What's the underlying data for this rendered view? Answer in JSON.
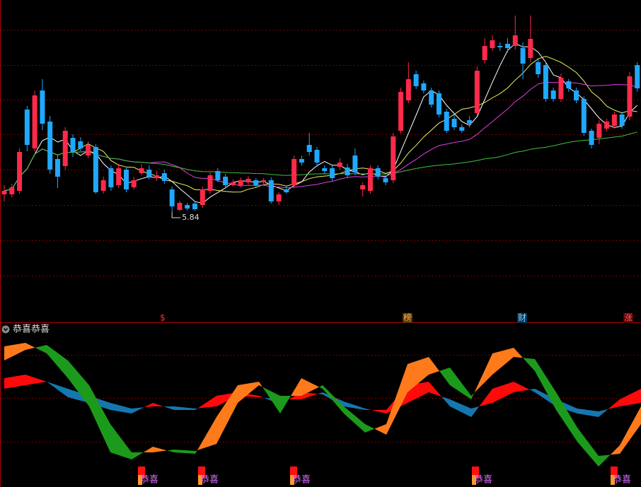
{
  "main": {
    "ylim": [
      4.28,
      8.84
    ],
    "up_color": "#ff2a4a",
    "down_color": "#1fa8ff",
    "low_label": 5.84,
    "markers": [
      "$",
      "榜",
      "财",
      "涨"
    ],
    "candles": [
      [
        6.09,
        6.22,
        5.99,
        6.14
      ],
      [
        6.09,
        6.24,
        6.05,
        6.19
      ],
      [
        6.14,
        6.74,
        6.1,
        6.69
      ],
      [
        7.29,
        7.34,
        6.7,
        6.79
      ],
      [
        6.74,
        7.56,
        6.7,
        7.49
      ],
      [
        7.56,
        7.72,
        7.0,
        7.09
      ],
      [
        7.12,
        7.2,
        6.38,
        6.44
      ],
      [
        6.59,
        6.66,
        6.18,
        6.34
      ],
      [
        6.49,
        7.04,
        6.44,
        6.99
      ],
      [
        6.89,
        6.94,
        6.62,
        6.69
      ],
      [
        6.84,
        6.9,
        6.7,
        6.74
      ],
      [
        6.64,
        6.84,
        6.6,
        6.79
      ],
      [
        6.76,
        6.8,
        6.1,
        6.12
      ],
      [
        6.14,
        6.34,
        6.1,
        6.29
      ],
      [
        6.46,
        6.5,
        6.14,
        6.19
      ],
      [
        6.22,
        6.52,
        6.18,
        6.46
      ],
      [
        6.44,
        6.48,
        6.12,
        6.16
      ],
      [
        6.19,
        6.34,
        6.16,
        6.29
      ],
      [
        6.39,
        6.52,
        6.36,
        6.46
      ],
      [
        6.44,
        6.5,
        6.3,
        6.34
      ],
      [
        6.32,
        6.42,
        6.28,
        6.36
      ],
      [
        6.39,
        6.44,
        6.24,
        6.28
      ],
      [
        6.16,
        6.2,
        5.84,
        5.92
      ],
      [
        5.87,
        6.0,
        5.85,
        5.97
      ],
      [
        5.94,
        5.97,
        5.86,
        5.89
      ],
      [
        5.96,
        5.99,
        5.86,
        5.88
      ],
      [
        5.94,
        6.2,
        5.9,
        6.16
      ],
      [
        6.14,
        6.4,
        6.1,
        6.36
      ],
      [
        6.42,
        6.46,
        6.26,
        6.29
      ],
      [
        6.34,
        6.38,
        6.18,
        6.22
      ],
      [
        6.22,
        6.3,
        6.2,
        6.26
      ],
      [
        6.22,
        6.33,
        6.19,
        6.29
      ],
      [
        6.26,
        6.35,
        6.23,
        6.31
      ],
      [
        6.29,
        6.32,
        6.19,
        6.22
      ],
      [
        6.26,
        6.32,
        6.24,
        6.29
      ],
      [
        6.29,
        6.33,
        5.96,
        5.99
      ],
      [
        5.99,
        6.12,
        5.94,
        6.09
      ],
      [
        6.16,
        6.2,
        6.1,
        6.12
      ],
      [
        6.22,
        6.64,
        6.18,
        6.59
      ],
      [
        6.59,
        6.64,
        6.5,
        6.54
      ],
      [
        6.79,
        6.96,
        6.64,
        6.69
      ],
      [
        6.72,
        6.76,
        6.48,
        6.54
      ],
      [
        6.46,
        6.5,
        6.38,
        6.42
      ],
      [
        6.46,
        6.5,
        6.28,
        6.32
      ],
      [
        6.48,
        6.6,
        6.44,
        6.54
      ],
      [
        6.47,
        6.52,
        6.32,
        6.36
      ],
      [
        6.64,
        6.74,
        6.36,
        6.4
      ],
      [
        6.16,
        6.26,
        6.06,
        6.22
      ],
      [
        6.14,
        6.5,
        6.1,
        6.46
      ],
      [
        6.46,
        6.5,
        6.3,
        6.34
      ],
      [
        6.32,
        6.36,
        6.22,
        6.26
      ],
      [
        6.29,
        6.96,
        6.25,
        6.91
      ],
      [
        6.99,
        7.6,
        6.95,
        7.54
      ],
      [
        7.42,
        7.96,
        7.38,
        7.72
      ],
      [
        7.79,
        7.84,
        7.58,
        7.62
      ],
      [
        7.66,
        7.7,
        7.52,
        7.56
      ],
      [
        7.56,
        7.6,
        7.32,
        7.36
      ],
      [
        7.52,
        7.56,
        7.18,
        7.22
      ],
      [
        7.26,
        7.3,
        6.96,
        6.99
      ],
      [
        7.16,
        7.22,
        7.0,
        7.04
      ],
      [
        7.04,
        7.08,
        6.96,
        6.99
      ],
      [
        7.14,
        7.2,
        7.04,
        7.09
      ],
      [
        7.24,
        7.9,
        7.2,
        7.84
      ],
      [
        7.99,
        8.3,
        7.94,
        8.19
      ],
      [
        8.16,
        8.34,
        8.12,
        8.27
      ],
      [
        8.19,
        8.24,
        8.12,
        8.17
      ],
      [
        8.22,
        8.3,
        8.1,
        8.16
      ],
      [
        8.19,
        8.62,
        8.14,
        8.34
      ],
      [
        8.16,
        8.24,
        7.72,
        7.94
      ],
      [
        8.02,
        8.62,
        7.96,
        8.29
      ],
      [
        7.96,
        8.0,
        7.74,
        7.79
      ],
      [
        7.92,
        7.96,
        7.4,
        7.44
      ],
      [
        7.56,
        7.6,
        7.4,
        7.44
      ],
      [
        7.44,
        7.8,
        7.4,
        7.74
      ],
      [
        7.69,
        7.72,
        7.54,
        7.59
      ],
      [
        7.56,
        7.6,
        7.38,
        7.42
      ],
      [
        7.44,
        7.48,
        6.92,
        6.96
      ],
      [
        6.99,
        7.02,
        6.74,
        6.79
      ],
      [
        6.89,
        7.14,
        6.8,
        7.09
      ],
      [
        7.02,
        7.16,
        6.98,
        7.12
      ],
      [
        7.06,
        7.26,
        7.02,
        7.22
      ],
      [
        7.22,
        7.26,
        7.02,
        7.06
      ],
      [
        7.19,
        7.82,
        7.14,
        7.76
      ],
      [
        7.92,
        7.96,
        7.54,
        7.59
      ]
    ]
  },
  "indicator": {
    "title": "恭喜恭喜",
    "ylim": [
      0,
      100
    ],
    "signals": [
      "恭喜",
      "恭喜",
      "恭喜",
      "恭喜",
      "恭喜"
    ],
    "band_a": {
      "up_color": "#ff7a1a",
      "down_color": "#1c9a1c",
      "lead": [
        95,
        97.5,
        90,
        72.5,
        52.5,
        20,
        15,
        24,
        20,
        19,
        45,
        67.5,
        70,
        47.5,
        72.5,
        65,
        47.5,
        34,
        40,
        82.5,
        87.5,
        67.5,
        57.5,
        90,
        94,
        77.5,
        50,
        27.5,
        10,
        25,
        52.5
      ],
      "lag": [
        85,
        92.5,
        96,
        85,
        67.5,
        40,
        20,
        20,
        22,
        21,
        26,
        55,
        67.5,
        60,
        60,
        67.5,
        52.5,
        40,
        32.5,
        62.5,
        75,
        80,
        60,
        75,
        87.5,
        86,
        62.5,
        37.5,
        17.5,
        19,
        40
      ]
    },
    "band_b": {
      "up_color": "#ff0a0a",
      "down_color": "#1577b0",
      "lead": [
        72.5,
        75,
        70,
        59,
        55,
        50,
        47.5,
        55,
        50,
        50,
        60,
        62.5,
        60,
        54,
        62.5,
        61,
        52.5,
        50,
        50,
        67.5,
        70,
        52.5,
        45,
        65,
        70,
        62.5,
        52.5,
        47.5,
        45,
        57.5,
        65
      ],
      "lag": [
        65,
        67.5,
        70,
        65,
        60,
        55,
        51,
        52.5,
        52.5,
        51,
        52.5,
        60,
        59,
        57.5,
        57.5,
        62.5,
        56,
        51,
        47.5,
        55,
        62.5,
        57.5,
        51,
        55,
        62.5,
        65,
        57.5,
        51,
        49,
        52.5,
        55
      ]
    }
  }
}
